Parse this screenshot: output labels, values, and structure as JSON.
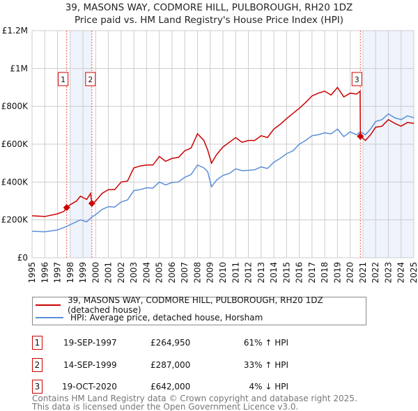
{
  "title": "39, MASONS WAY, CODMORE HILL, PULBOROUGH, RH20 1DZ",
  "subtitle": "Price paid vs. HM Land Registry's House Price Index (HPI)",
  "chart_data": {
    "type": "line",
    "title": "39, MASONS WAY, CODMORE HILL, PULBOROUGH, RH20 1DZ",
    "xlim": [
      1995,
      2025
    ],
    "ylim": [
      0,
      1200000
    ],
    "ytick_values": [
      0,
      200000,
      400000,
      600000,
      800000,
      1000000,
      1200000
    ],
    "ytick_labels": [
      "£0",
      "£200K",
      "£400K",
      "£600K",
      "£800K",
      "£1M",
      "£1.2M"
    ],
    "xtick_labels": [
      "1995",
      "1996",
      "1997",
      "1998",
      "1999",
      "2000",
      "2001",
      "2002",
      "2003",
      "2004",
      "2005",
      "2006",
      "2007",
      "2008",
      "2009",
      "2010",
      "2011",
      "2012",
      "2013",
      "2014",
      "2015",
      "2016",
      "2017",
      "2018",
      "2019",
      "2020",
      "2021",
      "2022",
      "2023",
      "2024",
      "2025"
    ],
    "grid": true,
    "legend_position": "below",
    "series": [
      {
        "name": "39, MASONS WAY, CODMORE HILL, PULBOROUGH, RH20 1DZ (detached house)",
        "color": "#cc0000",
        "x": [
          1995,
          1995.5,
          1996,
          1997,
          1997.5,
          1997.72,
          1998,
          1998.5,
          1998.8,
          1999.3,
          1999.6,
          1999.7,
          2000,
          2000.5,
          2001,
          2001.5,
          2002,
          2002.5,
          2003,
          2003.5,
          2004,
          2004.5,
          2005,
          2005.5,
          2006,
          2006.5,
          2007,
          2007.5,
          2008,
          2008.5,
          2008.8,
          2009.1,
          2009.5,
          2010,
          2010.5,
          2011,
          2011.5,
          2012,
          2012.5,
          2013,
          2013.5,
          2014,
          2014.5,
          2015,
          2016,
          2016.5,
          2017,
          2017.5,
          2018,
          2018.5,
          2019,
          2019.5,
          2020,
          2020.5,
          2020.78,
          2020.8,
          2021.2,
          2021.6,
          2022,
          2022.5,
          2023,
          2023.5,
          2024,
          2024.5,
          2025
        ],
        "y": [
          222000,
          220000,
          218000,
          232000,
          245000,
          264950,
          280000,
          300000,
          325000,
          308000,
          340000,
          287000,
          300000,
          340000,
          360000,
          360000,
          400000,
          405000,
          475000,
          485000,
          490000,
          490000,
          535000,
          510000,
          525000,
          530000,
          565000,
          580000,
          655000,
          620000,
          570000,
          500000,
          545000,
          585000,
          610000,
          635000,
          610000,
          620000,
          620000,
          645000,
          635000,
          680000,
          705000,
          735000,
          790000,
          820000,
          855000,
          870000,
          880000,
          860000,
          900000,
          850000,
          870000,
          865000,
          880000,
          642000,
          620000,
          650000,
          690000,
          695000,
          730000,
          710000,
          695000,
          715000,
          710000
        ]
      },
      {
        "name": "HPI: Average price, detached house, Horsham",
        "color": "#5b8fd6",
        "x": [
          1995,
          1996,
          1997,
          1997.7,
          1998,
          1998.8,
          1999.3,
          1999.7,
          2000,
          2000.5,
          2001,
          2001.5,
          2002,
          2002.5,
          2003,
          2003.5,
          2004,
          2004.5,
          2005,
          2005.5,
          2006,
          2006.5,
          2007,
          2007.5,
          2008,
          2008.5,
          2008.8,
          2009.1,
          2009.5,
          2010,
          2010.5,
          2011,
          2011.5,
          2012,
          2012.5,
          2013,
          2013.5,
          2014,
          2014.5,
          2015,
          2015.5,
          2016,
          2016.5,
          2017,
          2017.5,
          2018,
          2018.5,
          2019,
          2019.5,
          2020,
          2020.5,
          2020.8,
          2021.2,
          2021.6,
          2022,
          2022.5,
          2023,
          2023.5,
          2024,
          2024.5,
          2025
        ],
        "y": [
          140000,
          137000,
          147000,
          165000,
          175000,
          200000,
          190000,
          215000,
          228000,
          255000,
          270000,
          268000,
          295000,
          305000,
          355000,
          360000,
          370000,
          368000,
          400000,
          385000,
          398000,
          400000,
          425000,
          440000,
          490000,
          475000,
          455000,
          375000,
          410000,
          435000,
          445000,
          470000,
          460000,
          462000,
          465000,
          480000,
          472000,
          505000,
          525000,
          550000,
          565000,
          600000,
          620000,
          645000,
          650000,
          660000,
          655000,
          680000,
          640000,
          665000,
          650000,
          665000,
          650000,
          680000,
          720000,
          730000,
          760000,
          740000,
          730000,
          750000,
          740000
        ]
      }
    ],
    "sales": [
      {
        "label": "1",
        "x": 1997.72,
        "y": 264950
      },
      {
        "label": "2",
        "x": 1999.7,
        "y": 287000
      },
      {
        "label": "3",
        "x": 2020.8,
        "y": 642000
      }
    ],
    "shaded_ranges": [
      [
        1998.0,
        1999.7
      ],
      [
        2021.05,
        2025
      ]
    ]
  },
  "legend": {
    "items": [
      {
        "label": "39, MASONS WAY, CODMORE HILL, PULBOROUGH, RH20 1DZ (detached house)",
        "color": "#cc0000"
      },
      {
        "label": "HPI: Average price, detached house, Horsham",
        "color": "#5b8fd6"
      }
    ]
  },
  "transactions": [
    {
      "num": "1",
      "date": "19-SEP-1997",
      "price": "£264,950",
      "hpi": "61% ↑ HPI"
    },
    {
      "num": "2",
      "date": "14-SEP-1999",
      "price": "£287,000",
      "hpi": "33% ↑ HPI"
    },
    {
      "num": "3",
      "date": "19-OCT-2020",
      "price": "£642,000",
      "hpi": "4% ↓ HPI"
    }
  ],
  "footer": {
    "line1": "Contains HM Land Registry data © Crown copyright and database right 2025.",
    "line2": "This data is licensed under the Open Government Licence v3.0."
  }
}
